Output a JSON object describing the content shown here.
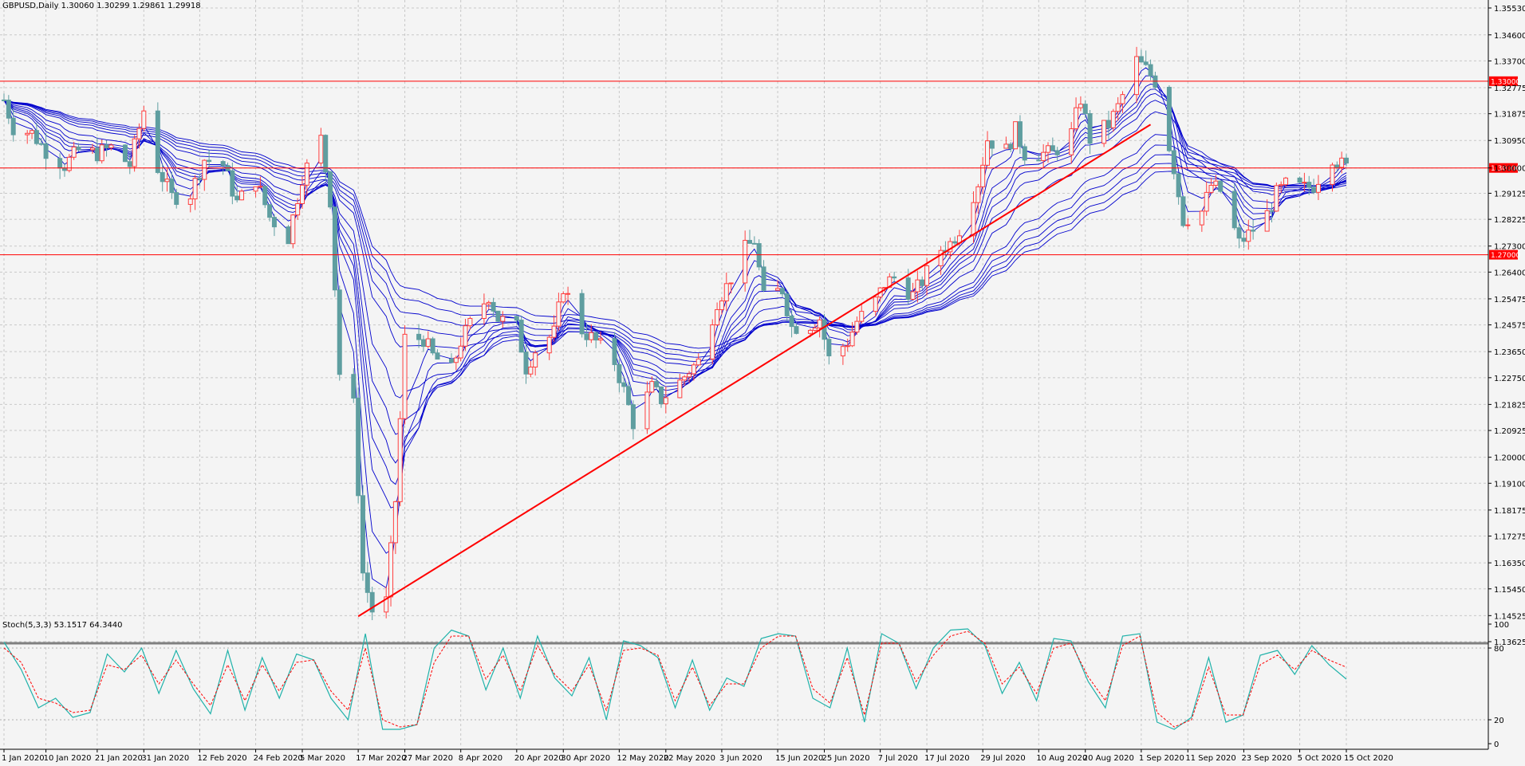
{
  "header": {
    "symbol_line": "GBPUSD,Daily  1.30060 1.30299 1.29861 1.29918"
  },
  "indicator": {
    "label": "Stoch(5,3,3) 53.1517 64.3440"
  },
  "colors": {
    "background": "#f4f4f4",
    "grid": "#c8c8c8",
    "bull_candle": "#ff4040",
    "bear_candle": "#5f9ea0",
    "ma_lines": "#0000cd",
    "levels": "#ff0000",
    "stoch_main": "#20b2aa",
    "stoch_signal": "#ff0000"
  },
  "chart_data": [
    {
      "type": "candlestick",
      "symbol": "GBPUSD",
      "timeframe": "Daily",
      "ylim": [
        1.13625,
        1.3553
      ],
      "price_ticks": [
        "1.35530",
        "1.34600",
        "1.33700",
        "1.32775",
        "1.31875",
        "1.30950",
        "1.30000",
        "1.29125",
        "1.28225",
        "1.27300",
        "1.26400",
        "1.25475",
        "1.24575",
        "1.23650",
        "1.22750",
        "1.21825",
        "1.20925",
        "1.20000",
        "1.19100",
        "1.18175",
        "1.17275",
        "1.16350",
        "1.15450",
        "1.14525",
        "1.13625"
      ],
      "date_ticks": [
        "1 Jan 2020",
        "10 Jan 2020",
        "21 Jan 2020",
        "31 Jan 2020",
        "12 Feb 2020",
        "24 Feb 2020",
        "5 Mar 2020",
        "17 Mar 2020",
        "27 Mar 2020",
        "8 Apr 2020",
        "20 Apr 2020",
        "30 Apr 2020",
        "12 May 2020",
        "22 May 2020",
        "3 Jun 2020",
        "15 Jun 2020",
        "25 Jun 2020",
        "7 Jul 2020",
        "17 Jul 2020",
        "29 Jul 2020",
        "10 Aug 2020",
        "20 Aug 2020",
        "1 Sep 2020",
        "11 Sep 2020",
        "23 Sep 2020",
        "5 Oct 2020",
        "15 Oct 2020"
      ],
      "horizontal_levels": [
        {
          "price": 1.33,
          "label": "1.33000"
        },
        {
          "price": 1.3,
          "label": "1.30000"
        },
        {
          "price": 1.27,
          "label": "1.27000"
        }
      ],
      "trendline": {
        "from": [
          "17 Mar 2020",
          1.145
        ],
        "to": [
          "3 Sep 2020",
          1.315
        ]
      },
      "close_path": [
        [
          "1 Jan 2020",
          1.3235
        ],
        [
          "3 Jan 2020",
          1.314
        ],
        [
          "7 Jan 2020",
          1.312
        ],
        [
          "10 Jan 2020",
          1.306
        ],
        [
          "14 Jan 2020",
          1.301
        ],
        [
          "17 Jan 2020",
          1.306
        ],
        [
          "21 Jan 2020",
          1.305
        ],
        [
          "24 Jan 2020",
          1.307
        ],
        [
          "28 Jan 2020",
          1.301
        ],
        [
          "31 Jan 2020",
          1.32
        ],
        [
          "3 Feb 2020",
          1.3
        ],
        [
          "6 Feb 2020",
          1.29
        ],
        [
          "10 Feb 2020",
          1.291
        ],
        [
          "13 Feb 2020",
          1.303
        ],
        [
          "17 Feb 2020",
          1.301
        ],
        [
          "20 Feb 2020",
          1.288
        ],
        [
          "24 Feb 2020",
          1.296
        ],
        [
          "27 Feb 2020",
          1.283
        ],
        [
          "2 Mar 2020",
          1.276
        ],
        [
          "5 Mar 2020",
          1.297
        ],
        [
          "9 Mar 2020",
          1.31
        ],
        [
          "11 Mar 2020",
          1.289
        ],
        [
          "13 Mar 2020",
          1.229
        ],
        [
          "16 Mar 2020",
          1.218
        ],
        [
          "18 Mar 2020",
          1.16
        ],
        [
          "20 Mar 2020",
          1.147
        ],
        [
          "23 Mar 2020",
          1.15
        ],
        [
          "25 Mar 2020",
          1.185
        ],
        [
          "27 Mar 2020",
          1.241
        ],
        [
          "31 Mar 2020",
          1.241
        ],
        [
          "2 Apr 2020",
          1.235
        ],
        [
          "6 Apr 2020",
          1.23
        ],
        [
          "8 Apr 2020",
          1.24
        ],
        [
          "10 Apr 2020",
          1.246
        ],
        [
          "14 Apr 2020",
          1.256
        ],
        [
          "16 Apr 2020",
          1.248
        ],
        [
          "20 Apr 2020",
          1.245
        ],
        [
          "22 Apr 2020",
          1.231
        ],
        [
          "24 Apr 2020",
          1.237
        ],
        [
          "28 Apr 2020",
          1.243
        ],
        [
          "30 Apr 2020",
          1.259
        ],
        [
          "4 May 2020",
          1.244
        ],
        [
          "7 May 2020",
          1.24
        ],
        [
          "11 May 2020",
          1.233
        ],
        [
          "13 May 2020",
          1.223
        ],
        [
          "15 May 2020",
          1.212
        ],
        [
          "19 May 2020",
          1.224
        ],
        [
          "21 May 2020",
          1.22
        ],
        [
          "25 May 2020",
          1.226
        ],
        [
          "27 May 2020",
          1.23
        ],
        [
          "29 May 2020",
          1.233
        ],
        [
          "2 Jun 2020",
          1.254
        ],
        [
          "4 Jun 2020",
          1.259
        ],
        [
          "8 Jun 2020",
          1.272
        ],
        [
          "10 Jun 2020",
          1.275
        ],
        [
          "12 Jun 2020",
          1.255
        ],
        [
          "16 Jun 2020",
          1.258
        ],
        [
          "18 Jun 2020",
          1.245
        ],
        [
          "22 Jun 2020",
          1.246
        ],
        [
          "24 Jun 2020",
          1.248
        ],
        [
          "26 Jun 2020",
          1.234
        ],
        [
          "30 Jun 2020",
          1.24
        ],
        [
          "2 Jul 2020",
          1.247
        ],
        [
          "6 Jul 2020",
          1.254
        ],
        [
          "8 Jul 2020",
          1.26
        ],
        [
          "10 Jul 2020",
          1.262
        ],
        [
          "14 Jul 2020",
          1.256
        ],
        [
          "16 Jul 2020",
          1.261
        ],
        [
          "20 Jul 2020",
          1.272
        ],
        [
          "22 Jul 2020",
          1.274
        ],
        [
          "24 Jul 2020",
          1.279
        ],
        [
          "28 Jul 2020",
          1.295
        ],
        [
          "30 Jul 2020",
          1.31
        ],
        [
          "3 Aug 2020",
          1.306
        ],
        [
          "5 Aug 2020",
          1.313
        ],
        [
          "7 Aug 2020",
          1.305
        ],
        [
          "11 Aug 2020",
          1.305
        ],
        [
          "13 Aug 2020",
          1.305
        ],
        [
          "17 Aug 2020",
          1.312
        ],
        [
          "19 Aug 2020",
          1.324
        ],
        [
          "21 Aug 2020",
          1.31
        ],
        [
          "25 Aug 2020",
          1.315
        ],
        [
          "27 Aug 2020",
          1.321
        ],
        [
          "31 Aug 2020",
          1.337
        ],
        [
          "2 Sep 2020",
          1.334
        ],
        [
          "4 Sep 2020",
          1.33
        ],
        [
          "8 Sep 2020",
          1.3
        ],
        [
          "10 Sep 2020",
          1.282
        ],
        [
          "14 Sep 2020",
          1.285
        ],
        [
          "16 Sep 2020",
          1.294
        ],
        [
          "18 Sep 2020",
          1.292
        ],
        [
          "22 Sep 2020",
          1.274
        ],
        [
          "24 Sep 2020",
          1.277
        ],
        [
          "28 Sep 2020",
          1.284
        ],
        [
          "30 Sep 2020",
          1.291
        ],
        [
          "2 Oct 2020",
          1.294
        ],
        [
          "6 Oct 2020",
          1.293
        ],
        [
          "8 Oct 2020",
          1.294
        ],
        [
          "12 Oct 2020",
          1.304
        ],
        [
          "14 Oct 2020",
          1.301
        ],
        [
          "16 Oct 2020",
          1.2992
        ]
      ]
    },
    {
      "type": "line",
      "title": "Stoch(5,3,3) 53.1517 64.3440",
      "ylim": [
        0,
        100
      ],
      "y_ticks": [
        "100",
        "80",
        "20",
        "0"
      ],
      "series": [
        {
          "name": "main",
          "values": [
            85,
            62,
            30,
            38,
            22,
            26,
            75,
            60,
            80,
            42,
            78,
            46,
            25,
            78,
            28,
            72,
            38,
            75,
            70,
            38,
            20,
            92,
            12,
            12,
            16,
            80,
            95,
            90,
            45,
            80,
            38,
            90,
            55,
            40,
            72,
            20,
            86,
            82,
            72,
            30,
            70,
            28,
            55,
            48,
            88,
            92,
            90,
            38,
            30,
            80,
            18,
            92,
            84,
            46,
            80,
            95,
            96,
            82,
            42,
            68,
            36,
            88,
            86,
            52,
            30,
            90,
            92,
            18,
            12,
            22,
            72,
            18,
            24,
            74,
            78,
            58,
            82,
            66,
            54
          ]
        },
        {
          "name": "signal",
          "values": [
            80,
            68,
            38,
            34,
            26,
            28,
            66,
            62,
            74,
            50,
            70,
            50,
            32,
            66,
            36,
            66,
            44,
            68,
            70,
            44,
            28,
            80,
            20,
            14,
            16,
            68,
            90,
            90,
            54,
            74,
            44,
            82,
            58,
            44,
            66,
            28,
            78,
            80,
            74,
            36,
            64,
            32,
            50,
            50,
            80,
            90,
            90,
            46,
            34,
            72,
            24,
            84,
            84,
            52,
            74,
            90,
            94,
            84,
            50,
            64,
            42,
            80,
            84,
            56,
            36,
            82,
            90,
            26,
            14,
            20,
            64,
            24,
            24,
            66,
            74,
            62,
            78,
            70,
            64
          ]
        }
      ]
    }
  ]
}
